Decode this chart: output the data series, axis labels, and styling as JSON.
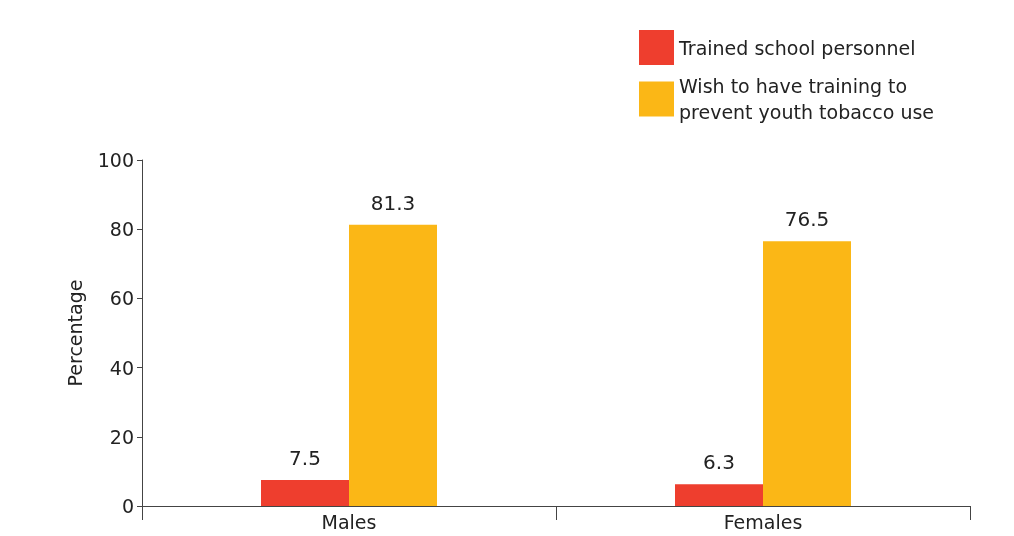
{
  "chart_data": {
    "type": "bar",
    "ylabel": "Percentage",
    "categories": [
      "Males",
      "Females"
    ],
    "series": [
      {
        "name": "Trained school personnel",
        "color": "#ee3e2e",
        "values": [
          7.5,
          6.3
        ]
      },
      {
        "name": "Wish to have training to prevent youth tobacco use",
        "color": "#fbb716",
        "values": [
          81.3,
          76.5
        ]
      }
    ],
    "ylim": [
      0,
      100
    ],
    "yticks": [
      0,
      20,
      40,
      60,
      80,
      100
    ],
    "data_labels": true,
    "legend": "top right",
    "grid": false
  }
}
